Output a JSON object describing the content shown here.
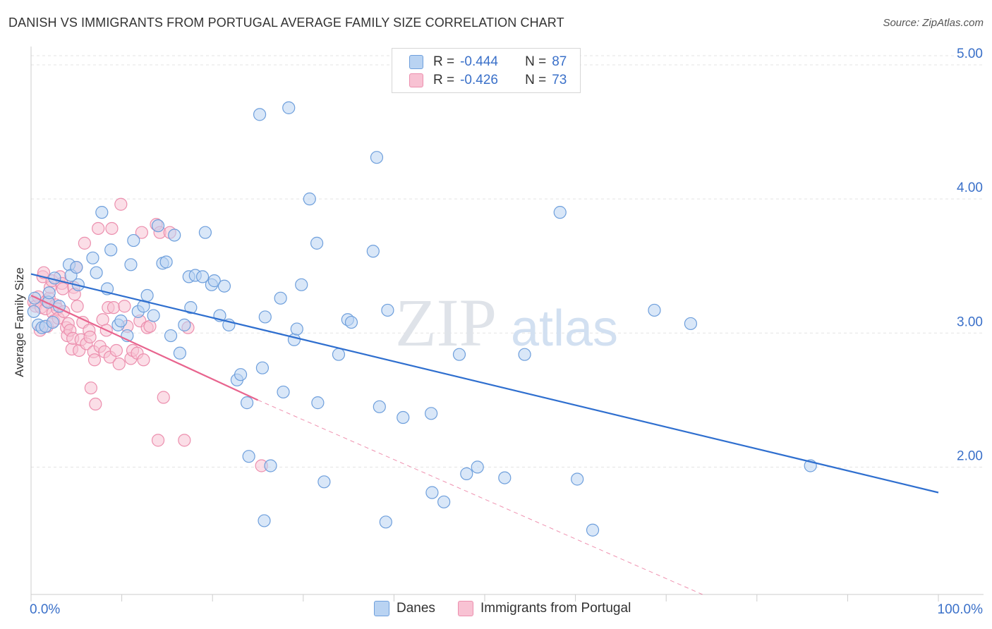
{
  "header": {
    "title": "DANISH VS IMMIGRANTS FROM PORTUGAL AVERAGE FAMILY SIZE CORRELATION CHART",
    "source": "Source: ZipAtlas.com"
  },
  "watermark": {
    "zip": "ZIP",
    "atlas": "atlas"
  },
  "legend": {
    "r_label": "R =",
    "n_label": "N =",
    "danes": {
      "r": "-0.444",
      "n": "87"
    },
    "portugal": {
      "r": "-0.426",
      "n": "73"
    }
  },
  "colors": {
    "danes_fill": "#b9d3f2",
    "danes_stroke": "#6e9fdc",
    "danes_line": "#2f6fcf",
    "portugal_fill": "#f8c2d3",
    "portugal_stroke": "#ec8fae",
    "portugal_line": "#e8648e",
    "tick_text": "#3a70c9",
    "grid": "#e3e3e3"
  },
  "chart_data": {
    "type": "scatter",
    "title": "DANISH VS IMMIGRANTS FROM PORTUGAL AVERAGE FAMILY SIZE CORRELATION CHART",
    "xlabel": "",
    "ylabel": "Average Family Size",
    "xlim": [
      0,
      100
    ],
    "ylim": [
      1.05,
      5.1
    ],
    "x_tick_labels": [
      "0.0%",
      "100.0%"
    ],
    "y_ticks": [
      2.0,
      3.0,
      4.0,
      5.0
    ],
    "y_tick_labels": [
      "2.00",
      "3.00",
      "4.00",
      "5.00"
    ],
    "series": [
      {
        "name": "Danes",
        "r": -0.444,
        "n": 87,
        "trend": {
          "x": [
            0,
            100
          ],
          "y": [
            3.44,
            1.81
          ]
        },
        "points": [
          [
            0.4,
            3.26
          ],
          [
            0.8,
            3.06
          ],
          [
            1.2,
            3.04
          ],
          [
            1.6,
            3.05
          ],
          [
            1.9,
            3.23
          ],
          [
            2.4,
            3.08
          ],
          [
            2.6,
            3.41
          ],
          [
            3.1,
            3.2
          ],
          [
            4.2,
            3.51
          ],
          [
            4.4,
            3.43
          ],
          [
            5.0,
            3.49
          ],
          [
            5.2,
            3.36
          ],
          [
            6.8,
            3.56
          ],
          [
            7.2,
            3.45
          ],
          [
            7.8,
            3.9
          ],
          [
            8.4,
            3.33
          ],
          [
            8.8,
            3.62
          ],
          [
            9.6,
            3.06
          ],
          [
            9.9,
            3.09
          ],
          [
            10.6,
            2.98
          ],
          [
            11.0,
            3.51
          ],
          [
            11.3,
            3.69
          ],
          [
            11.8,
            3.16
          ],
          [
            12.4,
            3.2
          ],
          [
            12.8,
            3.28
          ],
          [
            13.5,
            3.13
          ],
          [
            14.0,
            3.8
          ],
          [
            14.5,
            3.52
          ],
          [
            14.9,
            3.53
          ],
          [
            15.4,
            2.98
          ],
          [
            15.8,
            3.73
          ],
          [
            16.4,
            2.85
          ],
          [
            16.9,
            3.06
          ],
          [
            17.4,
            3.42
          ],
          [
            17.6,
            3.19
          ],
          [
            18.1,
            3.43
          ],
          [
            18.9,
            3.42
          ],
          [
            19.2,
            3.75
          ],
          [
            19.9,
            3.36
          ],
          [
            20.2,
            3.39
          ],
          [
            20.8,
            3.13
          ],
          [
            21.3,
            3.35
          ],
          [
            21.8,
            3.06
          ],
          [
            22.7,
            2.65
          ],
          [
            23.1,
            2.69
          ],
          [
            23.8,
            2.48
          ],
          [
            24.0,
            2.08
          ],
          [
            25.2,
            4.63
          ],
          [
            25.5,
            2.74
          ],
          [
            25.7,
            1.6
          ],
          [
            25.8,
            3.12
          ],
          [
            26.4,
            2.01
          ],
          [
            27.5,
            3.26
          ],
          [
            27.8,
            2.56
          ],
          [
            28.4,
            4.68
          ],
          [
            29.0,
            2.95
          ],
          [
            29.3,
            3.03
          ],
          [
            29.8,
            3.36
          ],
          [
            30.7,
            4.0
          ],
          [
            31.5,
            3.67
          ],
          [
            31.6,
            2.48
          ],
          [
            32.3,
            1.89
          ],
          [
            33.9,
            2.84
          ],
          [
            34.9,
            3.1
          ],
          [
            35.3,
            3.08
          ],
          [
            37.7,
            3.61
          ],
          [
            38.1,
            4.31
          ],
          [
            38.4,
            2.45
          ],
          [
            39.1,
            1.59
          ],
          [
            39.3,
            3.17
          ],
          [
            41.0,
            2.37
          ],
          [
            44.1,
            2.4
          ],
          [
            44.2,
            1.81
          ],
          [
            45.5,
            1.74
          ],
          [
            47.2,
            2.84
          ],
          [
            48.0,
            1.95
          ],
          [
            49.2,
            2.0
          ],
          [
            52.2,
            1.92
          ],
          [
            54.4,
            2.84
          ],
          [
            58.3,
            3.9
          ],
          [
            60.2,
            1.91
          ],
          [
            61.9,
            1.53
          ],
          [
            68.7,
            3.17
          ],
          [
            72.7,
            3.07
          ],
          [
            85.9,
            2.01
          ],
          [
            0.3,
            3.16
          ],
          [
            2.0,
            3.3
          ]
        ]
      },
      {
        "name": "Immigrants from Portugal",
        "r": -0.426,
        "n": 73,
        "trend": {
          "x": [
            0,
            25
          ],
          "y": [
            3.28,
            2.5
          ]
        },
        "trend_dashed": {
          "x": [
            25,
            74
          ],
          "y": [
            2.5,
            1.05
          ]
        },
        "points": [
          [
            0.3,
            3.23
          ],
          [
            0.5,
            3.2
          ],
          [
            0.8,
            3.27
          ],
          [
            1.1,
            3.19
          ],
          [
            1.3,
            3.42
          ],
          [
            1.4,
            3.45
          ],
          [
            1.6,
            3.18
          ],
          [
            1.7,
            3.24
          ],
          [
            1.8,
            3.05
          ],
          [
            2.0,
            3.26
          ],
          [
            2.1,
            3.34
          ],
          [
            2.3,
            3.39
          ],
          [
            2.4,
            3.15
          ],
          [
            2.5,
            3.09
          ],
          [
            2.7,
            3.21
          ],
          [
            2.9,
            3.18
          ],
          [
            3.0,
            3.11
          ],
          [
            3.2,
            3.42
          ],
          [
            3.4,
            3.37
          ],
          [
            3.5,
            3.33
          ],
          [
            3.6,
            3.16
          ],
          [
            3.9,
            3.04
          ],
          [
            4.0,
            2.98
          ],
          [
            4.1,
            3.07
          ],
          [
            4.3,
            3.02
          ],
          [
            4.5,
            2.88
          ],
          [
            4.6,
            2.96
          ],
          [
            4.7,
            3.34
          ],
          [
            4.8,
            3.29
          ],
          [
            5.0,
            3.49
          ],
          [
            5.1,
            3.2
          ],
          [
            5.3,
            2.87
          ],
          [
            5.5,
            2.95
          ],
          [
            5.7,
            3.08
          ],
          [
            5.9,
            3.67
          ],
          [
            6.1,
            2.92
          ],
          [
            6.4,
            3.02
          ],
          [
            6.5,
            2.97
          ],
          [
            6.6,
            2.59
          ],
          [
            6.9,
            2.86
          ],
          [
            7.0,
            2.8
          ],
          [
            7.1,
            2.47
          ],
          [
            7.4,
            3.78
          ],
          [
            7.6,
            2.9
          ],
          [
            7.9,
            3.1
          ],
          [
            8.1,
            2.86
          ],
          [
            8.3,
            3.02
          ],
          [
            8.5,
            3.19
          ],
          [
            8.7,
            2.82
          ],
          [
            8.9,
            3.78
          ],
          [
            9.1,
            3.19
          ],
          [
            9.4,
            2.87
          ],
          [
            9.7,
            2.77
          ],
          [
            9.9,
            3.96
          ],
          [
            10.3,
            3.2
          ],
          [
            10.6,
            3.05
          ],
          [
            11.0,
            2.81
          ],
          [
            11.2,
            2.87
          ],
          [
            11.7,
            2.85
          ],
          [
            12.0,
            3.09
          ],
          [
            12.2,
            3.75
          ],
          [
            12.4,
            2.8
          ],
          [
            12.8,
            3.04
          ],
          [
            13.1,
            3.05
          ],
          [
            13.8,
            3.81
          ],
          [
            14.0,
            2.2
          ],
          [
            14.2,
            3.75
          ],
          [
            14.6,
            2.52
          ],
          [
            15.3,
            3.75
          ],
          [
            16.9,
            2.2
          ],
          [
            17.3,
            3.04
          ],
          [
            25.4,
            2.01
          ],
          [
            1.0,
            3.02
          ]
        ]
      }
    ]
  }
}
